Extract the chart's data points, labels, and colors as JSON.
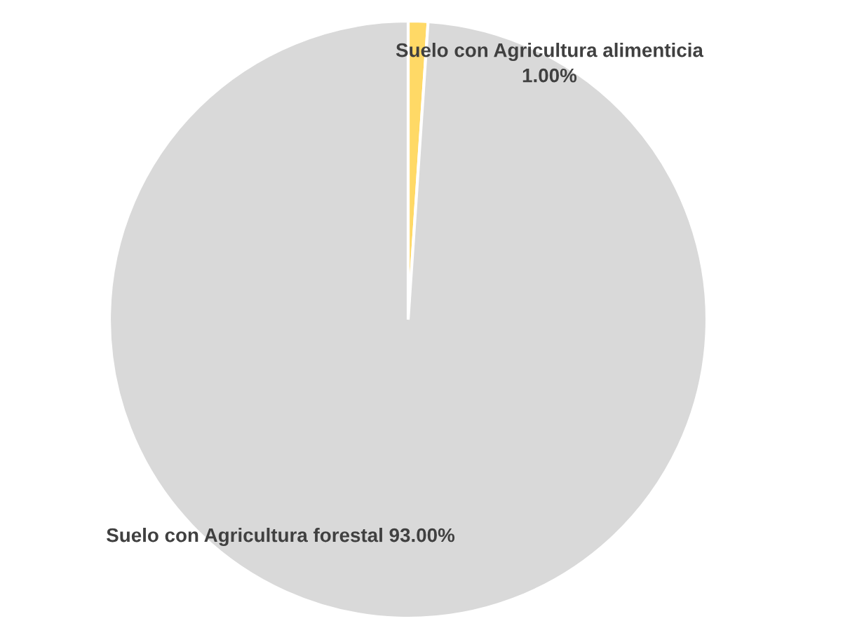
{
  "chart_data": {
    "type": "pie",
    "categories": [
      "Suelo con Agricultura alimenticia",
      "Suelo con Agricultura forestal"
    ],
    "values": [
      1.0,
      93.0
    ],
    "value_labels": [
      "1.00%",
      "93.00%"
    ],
    "colors": [
      "#ffd966",
      "#d9d9d9"
    ],
    "legend": false
  }
}
